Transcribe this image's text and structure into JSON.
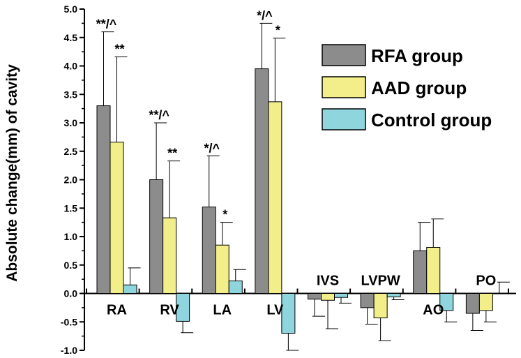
{
  "chart_data": {
    "type": "bar",
    "ylabel": "Absolute change(mm) of cavity",
    "xlabel": "",
    "ylim": [
      -1.0,
      5.0
    ],
    "yticks": [
      "5.0",
      "4.5",
      "4.0",
      "3.5",
      "3.0",
      "2.5",
      "2.0",
      "1.5",
      "1.0",
      "0.5",
      "0.0",
      "-0.5",
      "-1.0"
    ],
    "categories": [
      "RA",
      "RV",
      "LA",
      "LV",
      "IVS",
      "LVPW",
      "AO",
      "PO"
    ],
    "grid": false,
    "legend_position": "top-right",
    "series": [
      {
        "name": "RFA group",
        "color": "#8c8c8c",
        "values": [
          3.3,
          2.0,
          1.52,
          3.95,
          -0.1,
          -0.25,
          0.75,
          -0.35
        ],
        "errors": [
          1.3,
          1.0,
          0.9,
          0.8,
          0.3,
          0.29,
          0.5,
          0.3
        ]
      },
      {
        "name": "AAD group",
        "color": "#f2ee8a",
        "values": [
          2.66,
          1.33,
          0.85,
          3.37,
          -0.12,
          -0.43,
          0.81,
          -0.3
        ],
        "errors": [
          1.5,
          1.0,
          0.4,
          1.12,
          0.5,
          0.4,
          0.5,
          0.2
        ]
      },
      {
        "name": "Control group",
        "color": "#8fd5dd",
        "values": [
          0.15,
          -0.49,
          0.22,
          -0.7,
          -0.07,
          -0.06,
          -0.3,
          0.0
        ],
        "errors": [
          0.3,
          0.2,
          0.2,
          0.3,
          0.1,
          0.05,
          0.2,
          0.2
        ]
      }
    ],
    "annotations": [
      {
        "category": "RA",
        "series": 0,
        "text": "**/^"
      },
      {
        "category": "RA",
        "series": 1,
        "text": "**"
      },
      {
        "category": "RV",
        "series": 0,
        "text": "**/^"
      },
      {
        "category": "RV",
        "series": 1,
        "text": "**"
      },
      {
        "category": "LA",
        "series": 0,
        "text": "*/^"
      },
      {
        "category": "LA",
        "series": 1,
        "text": "*"
      },
      {
        "category": "LV",
        "series": 0,
        "text": "*/^"
      },
      {
        "category": "LV",
        "series": 1,
        "text": "*"
      }
    ]
  }
}
